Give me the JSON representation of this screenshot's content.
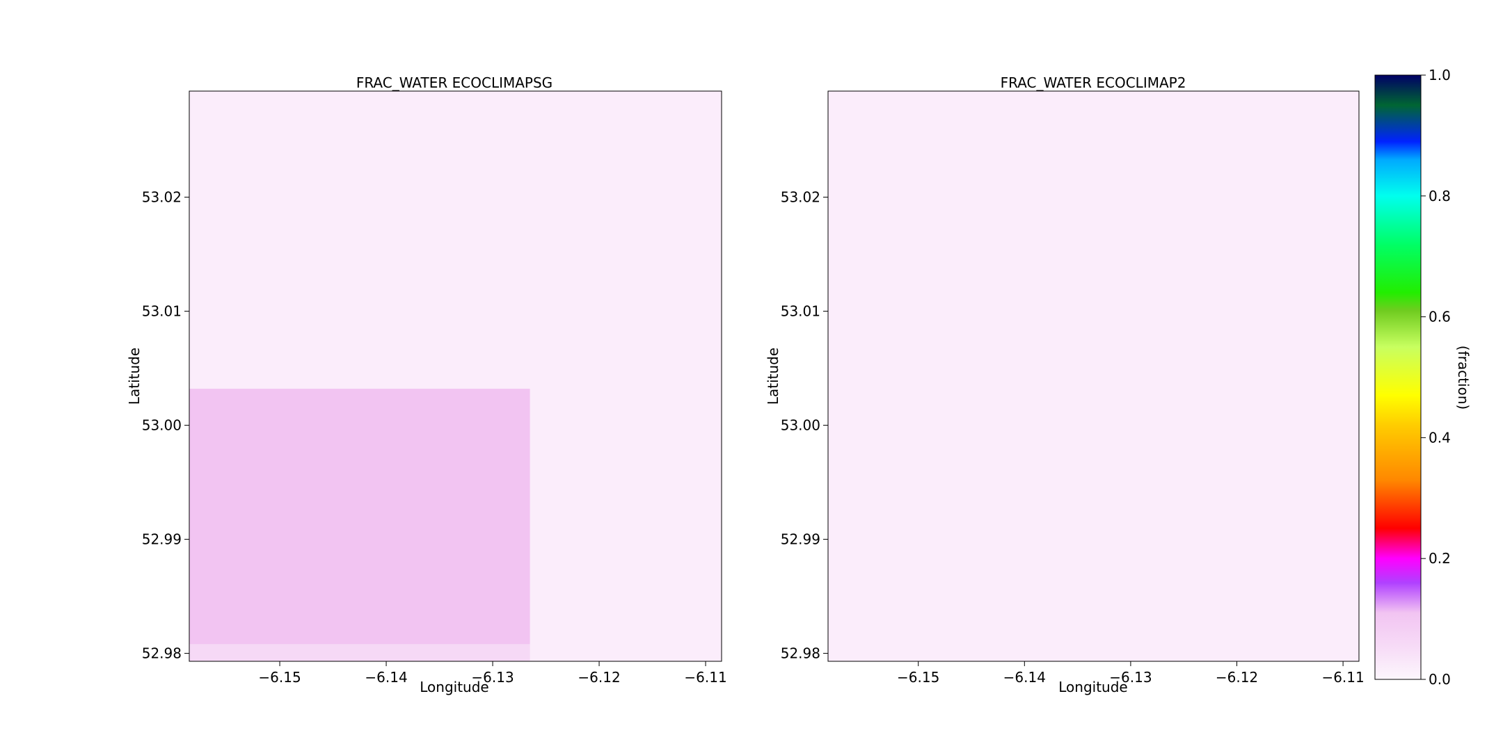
{
  "chart_data": [
    {
      "type": "heatmap",
      "title": "FRAC_WATER ECOCLIMAPSG",
      "xlabel": "Longitude",
      "ylabel": "Latitude",
      "xlim": [
        -6.1585,
        -6.1085
      ],
      "ylim": [
        52.9793,
        53.0293
      ],
      "xticks": [
        -6.15,
        -6.14,
        -6.13,
        -6.12,
        -6.11
      ],
      "xtick_labels": [
        "−6.15",
        "−6.14",
        "−6.13",
        "−6.12",
        "−6.11"
      ],
      "yticks": [
        52.98,
        52.99,
        53.0,
        53.01,
        53.02
      ],
      "ytick_labels": [
        "52.98",
        "52.99",
        "53.00",
        "53.01",
        "53.02"
      ],
      "background_value": 0.02,
      "cells": [
        {
          "x": [
            -6.1585,
            -6.1265
          ],
          "y": [
            52.9808,
            53.0032
          ],
          "value": 0.11
        },
        {
          "x": [
            -6.1585,
            -6.1265
          ],
          "y": [
            52.9793,
            52.9808
          ],
          "value": 0.06
        }
      ]
    },
    {
      "type": "heatmap",
      "title": "FRAC_WATER ECOCLIMAP2",
      "xlabel": "Longitude",
      "ylabel": "Latitude",
      "xlim": [
        -6.1585,
        -6.1085
      ],
      "ylim": [
        52.9793,
        53.0293
      ],
      "xticks": [
        -6.15,
        -6.14,
        -6.13,
        -6.12,
        -6.11
      ],
      "xtick_labels": [
        "−6.15",
        "−6.14",
        "−6.13",
        "−6.12",
        "−6.11"
      ],
      "yticks": [
        52.98,
        52.99,
        53.0,
        53.01,
        53.02
      ],
      "ytick_labels": [
        "52.98",
        "52.99",
        "53.00",
        "53.01",
        "53.02"
      ],
      "background_value": 0.02,
      "cells": []
    }
  ],
  "colorbar": {
    "label": "(fraction)",
    "range": [
      0,
      1
    ],
    "ticks": [
      0.0,
      0.2,
      0.4,
      0.6,
      0.8,
      1.0
    ],
    "tick_labels": [
      "0.0",
      "0.2",
      "0.4",
      "0.6",
      "0.8",
      "1.0"
    ],
    "colormap_stops": [
      {
        "v": 0.0,
        "color": "#fdf7fd"
      },
      {
        "v": 0.05,
        "color": "#f7ddf7"
      },
      {
        "v": 0.11,
        "color": "#f2c4f2"
      },
      {
        "v": 0.16,
        "color": "#b040ff"
      },
      {
        "v": 0.2,
        "color": "#ff00ff"
      },
      {
        "v": 0.25,
        "color": "#ff0000"
      },
      {
        "v": 0.33,
        "color": "#ff8800"
      },
      {
        "v": 0.42,
        "color": "#ffcc00"
      },
      {
        "v": 0.47,
        "color": "#ffff00"
      },
      {
        "v": 0.55,
        "color": "#c8ff60"
      },
      {
        "v": 0.61,
        "color": "#70cc20"
      },
      {
        "v": 0.64,
        "color": "#22ee00"
      },
      {
        "v": 0.72,
        "color": "#00ff66"
      },
      {
        "v": 0.8,
        "color": "#00ffee"
      },
      {
        "v": 0.86,
        "color": "#00aaff"
      },
      {
        "v": 0.89,
        "color": "#0022ff"
      },
      {
        "v": 0.95,
        "color": "#006633"
      },
      {
        "v": 1.0,
        "color": "#000066"
      }
    ]
  }
}
